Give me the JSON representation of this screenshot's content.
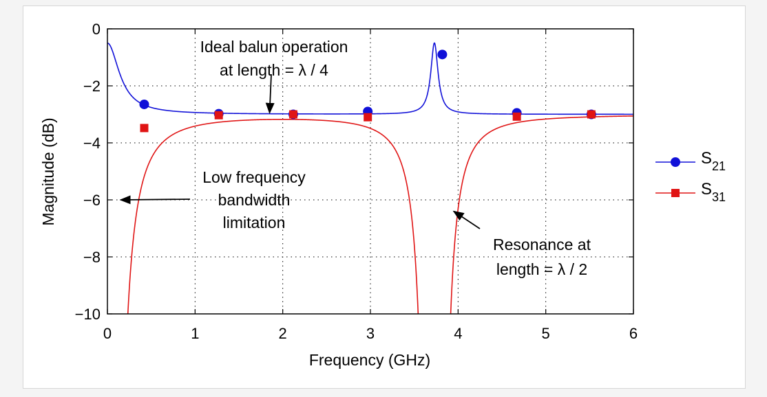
{
  "chart_data": {
    "type": "line",
    "title": "",
    "xlabel": "Frequency (GHz)",
    "ylabel": "Magnitude (dB)",
    "xlim": [
      0,
      6
    ],
    "ylim": [
      -10,
      0
    ],
    "grid": true,
    "x_ticks": [
      0,
      1,
      2,
      3,
      4,
      5,
      6
    ],
    "y_ticks": [
      0,
      -2,
      -4,
      -6,
      -8,
      -10
    ],
    "x_tick_labels": [
      "0",
      "1",
      "2",
      "3",
      "4",
      "5",
      "6"
    ],
    "y_tick_labels": [
      "0",
      "−2",
      "−4",
      "−6",
      "−8",
      "−10"
    ],
    "legend_position": "right",
    "series": [
      {
        "name": "S21",
        "legend_main": "S",
        "legend_sub": "21",
        "color": "#1010d8",
        "marker": "circle",
        "markers": [
          {
            "x": 0.42,
            "y": -2.65
          },
          {
            "x": 1.27,
            "y": -2.98
          },
          {
            "x": 2.12,
            "y": -3.0
          },
          {
            "x": 2.97,
            "y": -2.9
          },
          {
            "x": 3.82,
            "y": -0.9
          },
          {
            "x": 4.67,
            "y": -2.95
          },
          {
            "x": 5.52,
            "y": -3.0
          }
        ]
      },
      {
        "name": "S31",
        "legend_main": "S",
        "legend_sub": "31",
        "color": "#e01414",
        "marker": "square",
        "markers": [
          {
            "x": 0.42,
            "y": -3.48
          },
          {
            "x": 1.27,
            "y": -3.03
          },
          {
            "x": 2.12,
            "y": -3.0
          },
          {
            "x": 2.97,
            "y": -3.1
          },
          {
            "x": 4.67,
            "y": -3.08
          },
          {
            "x": 5.52,
            "y": -3.0
          }
        ]
      }
    ],
    "annotations": [
      {
        "id": "ideal",
        "lines": [
          "Ideal balun operation",
          "at length = λ / 4"
        ],
        "arrow_to": {
          "x": 1.85,
          "y": -2.95
        }
      },
      {
        "id": "lowfreq",
        "lines": [
          "Low frequency",
          "bandwidth",
          "limitation"
        ],
        "arrow_to": {
          "x": 0.15,
          "y": -6.0
        }
      },
      {
        "id": "resonance",
        "lines": [
          "Resonance at",
          "length = λ / 2"
        ],
        "arrow_to": {
          "x": 3.95,
          "y": -6.4
        }
      }
    ]
  }
}
